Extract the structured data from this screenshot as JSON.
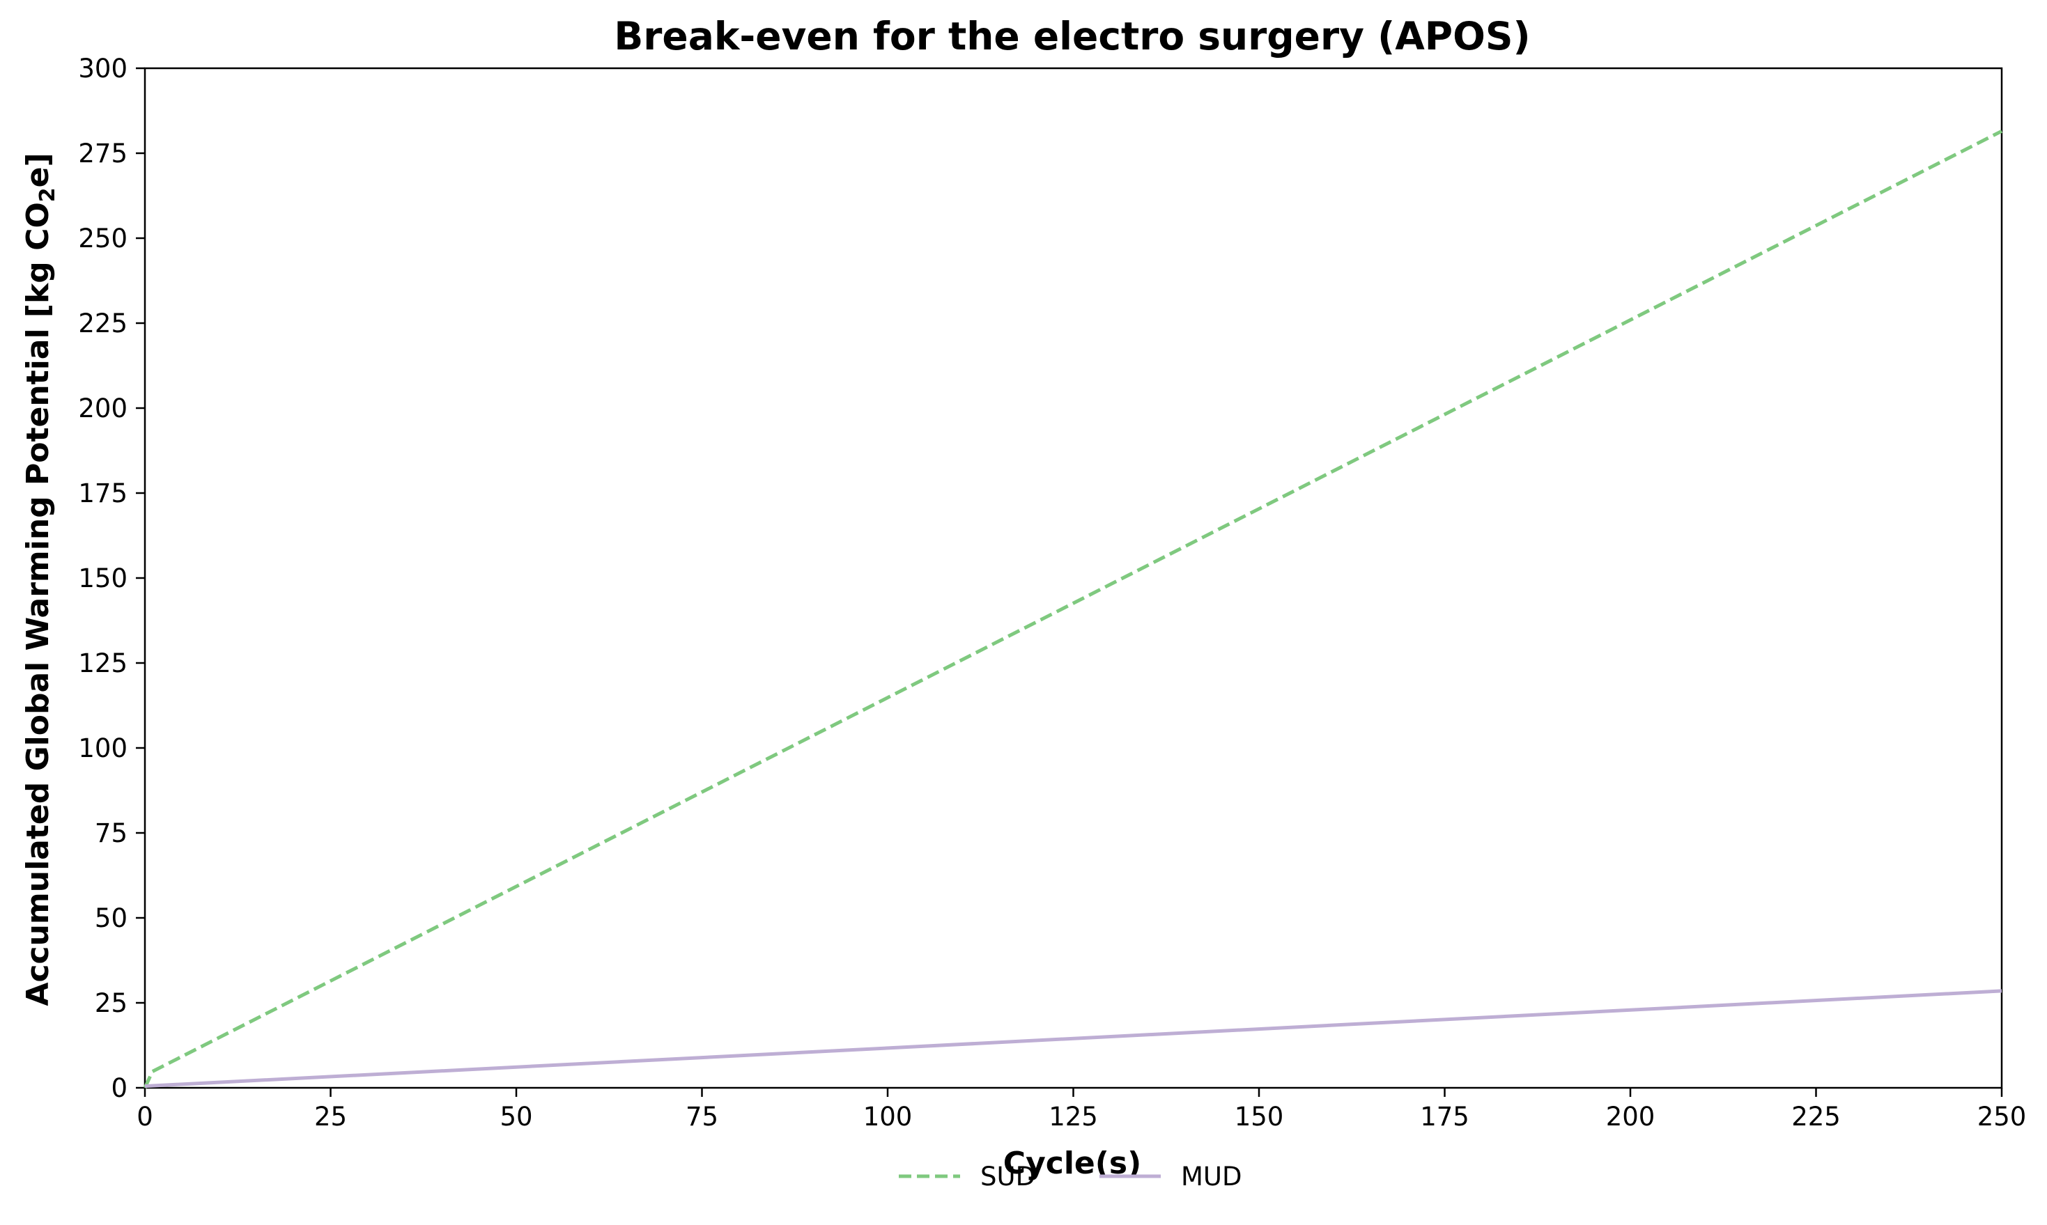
{
  "chart_data": {
    "type": "line",
    "title": "Break-even for the electro surgery (APOS)",
    "xlabel": "Cycle(s)",
    "ylabel_main": "Accumulated Global Warming Potential [kg CO",
    "ylabel_sub": "2",
    "ylabel_tail": "e]",
    "xlim": [
      0,
      250
    ],
    "ylim": [
      0,
      300
    ],
    "x_ticks": [
      0,
      25,
      50,
      75,
      100,
      125,
      150,
      175,
      200,
      225,
      250
    ],
    "y_ticks": [
      0,
      25,
      50,
      75,
      100,
      125,
      150,
      175,
      200,
      225,
      250,
      275,
      300
    ],
    "grid": false,
    "legend_position": "bottom-center",
    "series": [
      {
        "name": "SUD",
        "color": "#7fc97f",
        "dash": "dashed",
        "x": [
          0,
          1,
          250
        ],
        "y": [
          0,
          4.8,
          281.5
        ]
      },
      {
        "name": "MUD",
        "color": "#beaed4",
        "dash": "solid",
        "x": [
          0,
          250
        ],
        "y": [
          0.5,
          28.5
        ]
      }
    ]
  }
}
